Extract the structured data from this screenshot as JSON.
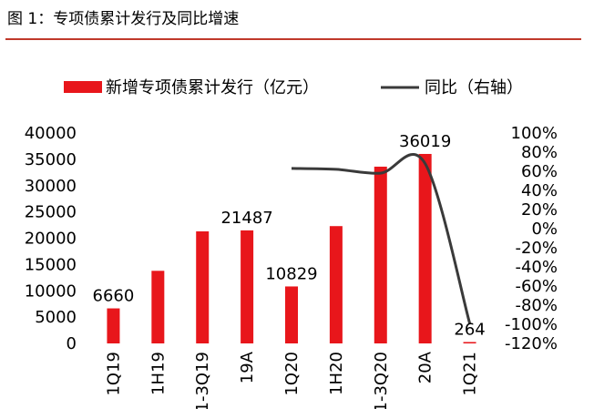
{
  "title": "图 1：专项债累计发行及同比增速",
  "colors": {
    "bar": "#e8161b",
    "line": "#3a3a3a",
    "rule": "#c0392b"
  },
  "chart_data": {
    "type": "bar",
    "categories": [
      "1Q19",
      "1H19",
      "1-3Q19",
      "19A",
      "1Q20",
      "1H20",
      "1-3Q20",
      "20A",
      "1Q21"
    ],
    "series": [
      {
        "name": "新增专项债累计发行（亿元）",
        "type": "bar",
        "axis": "left",
        "values": [
          6660,
          13800,
          21300,
          21487,
          10829,
          22300,
          33600,
          36019,
          264
        ]
      },
      {
        "name": "同比（右轴）",
        "type": "line",
        "axis": "right",
        "values": [
          null,
          null,
          null,
          null,
          63,
          62,
          58,
          68,
          -99
        ]
      }
    ],
    "data_labels": [
      {
        "index": 0,
        "text": "6660"
      },
      {
        "index": 3,
        "text": "21487"
      },
      {
        "index": 4,
        "text": "10829"
      },
      {
        "index": 7,
        "text": "36019"
      },
      {
        "index": 8,
        "text": "264"
      }
    ],
    "left_axis": {
      "ylim": [
        0,
        40000
      ],
      "ticks": [
        "0",
        "5000",
        "10000",
        "15000",
        "20000",
        "25000",
        "30000",
        "35000",
        "40000"
      ]
    },
    "right_axis": {
      "ylim": [
        -120,
        100
      ],
      "ticks": [
        "-120%",
        "-100%",
        "-80%",
        "-60%",
        "-40%",
        "-20%",
        "0%",
        "20%",
        "40%",
        "60%",
        "80%",
        "100%"
      ]
    },
    "legend": [
      "新增专项债累计发行（亿元）",
      "同比（右轴）"
    ],
    "grid": false
  }
}
